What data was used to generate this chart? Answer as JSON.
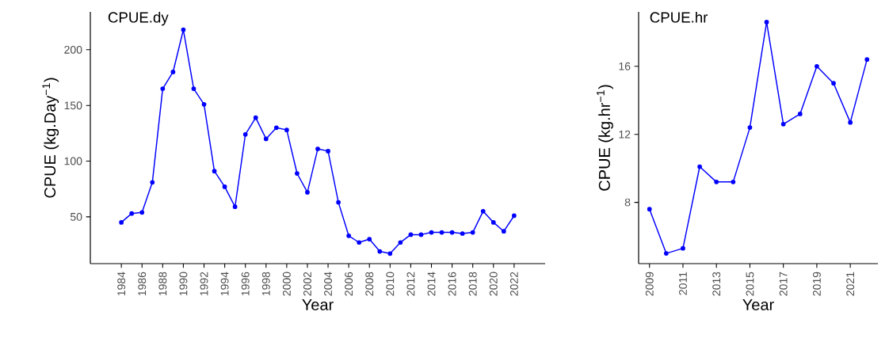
{
  "chart_data": [
    {
      "type": "line",
      "title": "CPUE.dy",
      "xlabel": "Year",
      "ylabel": "CPUE  (kg.Day$^{−1}$)",
      "color": "#0000ff",
      "marker": "circle",
      "line_style": "solid",
      "x": [
        1984,
        1985,
        1986,
        1987,
        1988,
        1989,
        1990,
        1991,
        1992,
        1993,
        1994,
        1995,
        1996,
        1997,
        1998,
        1999,
        2000,
        2001,
        2002,
        2003,
        2004,
        2005,
        2006,
        2007,
        2008,
        2009,
        2010,
        2011,
        2012,
        2013,
        2014,
        2015,
        2016,
        2017,
        2018,
        2019,
        2020,
        2021,
        2022
      ],
      "values": [
        45,
        53,
        54,
        81,
        165,
        180,
        218,
        165,
        151,
        91,
        77,
        59,
        124,
        139,
        120,
        130,
        128,
        89,
        72,
        111,
        109,
        63,
        33,
        27,
        30,
        19,
        17,
        27,
        34,
        34,
        36,
        36,
        36,
        35,
        36,
        55,
        45,
        37,
        51
      ],
      "xlim": [
        1981,
        2025
      ],
      "ylim": [
        8,
        234
      ],
      "xticks": [
        1984,
        1986,
        1988,
        1990,
        1992,
        1994,
        1996,
        1998,
        2000,
        2002,
        2004,
        2006,
        2008,
        2010,
        2012,
        2014,
        2016,
        2018,
        2020,
        2022
      ],
      "yticks": [
        50,
        100,
        150,
        200
      ]
    },
    {
      "type": "line",
      "title": "CPUE.hr",
      "xlabel": "Year",
      "ylabel": "CPUE (kg.hr$^{−1}$)",
      "color": "#0000ff",
      "marker": "circle",
      "line_style": "solid",
      "x": [
        2009,
        2010,
        2011,
        2012,
        2013,
        2014,
        2015,
        2016,
        2017,
        2018,
        2019,
        2020,
        2021,
        2022
      ],
      "values": [
        7.6,
        5.0,
        5.3,
        10.1,
        9.2,
        9.2,
        12.4,
        18.6,
        12.6,
        13.2,
        16.0,
        15.0,
        12.7,
        16.4
      ],
      "xlim": [
        2008.35,
        2022.65
      ],
      "ylim": [
        4.4,
        19.2
      ],
      "xticks": [
        2009,
        2011,
        2013,
        2015,
        2017,
        2019,
        2021
      ],
      "yticks": [
        8,
        12,
        16
      ]
    }
  ]
}
